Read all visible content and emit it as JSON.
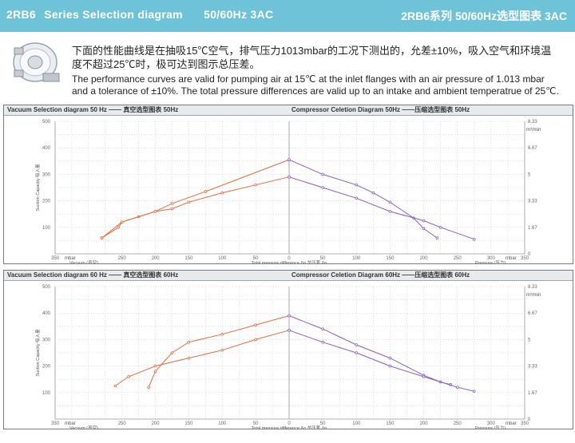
{
  "header": {
    "model": "2RB6",
    "series": "Series Selection diagram",
    "freq": "50/60Hz 3AC",
    "right": "2RB6系列 50/60Hz选型图表 3AC",
    "bg_color": "#6fc3d8"
  },
  "intro": {
    "cn": "下面的性能曲线是在抽吸15℃空气，排气压力1013mbar的工况下测出的，允差±10%，吸入空气和环境温度不超过25℃时，极可达到图示总压差。",
    "en": "The performance curves are valid for pumping air at 15℃ at the inlet flanges with an air pressure of 1.013 mbar and a tolerance of ±10%. The total pressure differences are valid up to an intake and ambient temperatrue of 25℃."
  },
  "axis_text": {
    "mbar": "mbar",
    "vacuum": "Vacuum (真空)",
    "pressure": "Pressure (压力)",
    "total_diff": "Total pressure difference Δp 总压差 Δp",
    "y_left": "Suction Capacity 吸入量",
    "m3min": "m³/min"
  },
  "colors": {
    "orange": "#e9693a",
    "purple": "#8a5cc6",
    "grid": "#a9c9dd",
    "axis": "#9a9a9a"
  },
  "chart_data": [
    {
      "type": "line",
      "title_left": "Vacuum Selection diagram 50 Hz —— 真空选型图表 50Hz",
      "title_right": "Compressor Celetion Diagram 50Hz ——压缩选型图表 50Hz",
      "x_left": {
        "ticks": [
          350,
          250,
          200,
          150,
          100,
          50,
          0
        ],
        "range": [
          350,
          0
        ]
      },
      "x_right": {
        "ticks": [
          0,
          50,
          100,
          150,
          200,
          250,
          300,
          350
        ],
        "range": [
          0,
          350
        ]
      },
      "y_left": {
        "ticks": [
          0,
          100,
          200,
          300,
          400,
          500
        ],
        "range": [
          0,
          500
        ]
      },
      "y_right": {
        "ticks": [
          "1.67",
          "3.33",
          "5",
          "6.67",
          "8.33"
        ],
        "range": [
          0,
          8.33
        ]
      },
      "series": [
        {
          "side": "vacuum",
          "color": "orange",
          "x": [
            280,
            255,
            250,
            225,
            200,
            175,
            125,
            0
          ],
          "y": [
            60,
            100,
            120,
            140,
            160,
            190,
            235,
            355
          ]
        },
        {
          "side": "vacuum",
          "color": "orange",
          "x": [
            280,
            250,
            200,
            175,
            150,
            100,
            50,
            0
          ],
          "y": [
            60,
            120,
            160,
            170,
            195,
            230,
            260,
            290
          ]
        },
        {
          "side": "pressure",
          "color": "purple",
          "x": [
            0,
            50,
            100,
            125,
            150,
            185,
            200,
            220
          ],
          "y": [
            355,
            300,
            260,
            230,
            195,
            135,
            95,
            60
          ]
        },
        {
          "side": "pressure",
          "color": "purple",
          "x": [
            0,
            50,
            100,
            150,
            200,
            225,
            275
          ],
          "y": [
            290,
            250,
            210,
            160,
            125,
            100,
            55
          ]
        }
      ]
    },
    {
      "type": "line",
      "title_left": "Vacuum Selection diagram 60 Hz —— 真空选型图表 60Hz",
      "title_right": "Compressor Celetion Diagram 60Hz ——压缩选型图表 60Hz",
      "x_left": {
        "ticks": [
          350,
          250,
          200,
          150,
          100,
          50,
          0
        ],
        "range": [
          350,
          0
        ]
      },
      "x_right": {
        "ticks": [
          0,
          50,
          100,
          150,
          200,
          250,
          300,
          350
        ],
        "range": [
          0,
          350
        ]
      },
      "y_left": {
        "ticks": [
          0,
          100,
          200,
          300,
          400,
          500
        ],
        "range": [
          0,
          500
        ]
      },
      "y_right": {
        "ticks": [
          "1.67",
          "3.33",
          "5",
          "6.67",
          "8.33"
        ],
        "range": [
          0,
          8.33
        ]
      },
      "series": [
        {
          "side": "vacuum",
          "color": "orange",
          "x": [
            210,
            200,
            175,
            150,
            100,
            50,
            0
          ],
          "y": [
            120,
            180,
            250,
            290,
            320,
            355,
            390
          ]
        },
        {
          "side": "vacuum",
          "color": "orange",
          "x": [
            260,
            240,
            200,
            150,
            100,
            50,
            0
          ],
          "y": [
            125,
            160,
            200,
            230,
            260,
            300,
            335
          ]
        },
        {
          "side": "pressure",
          "color": "purple",
          "x": [
            0,
            50,
            100,
            150,
            200,
            225,
            240
          ],
          "y": [
            390,
            340,
            280,
            230,
            165,
            140,
            130
          ]
        },
        {
          "side": "pressure",
          "color": "purple",
          "x": [
            0,
            50,
            100,
            150,
            200,
            250,
            275
          ],
          "y": [
            335,
            290,
            250,
            200,
            160,
            120,
            105
          ]
        }
      ]
    }
  ]
}
